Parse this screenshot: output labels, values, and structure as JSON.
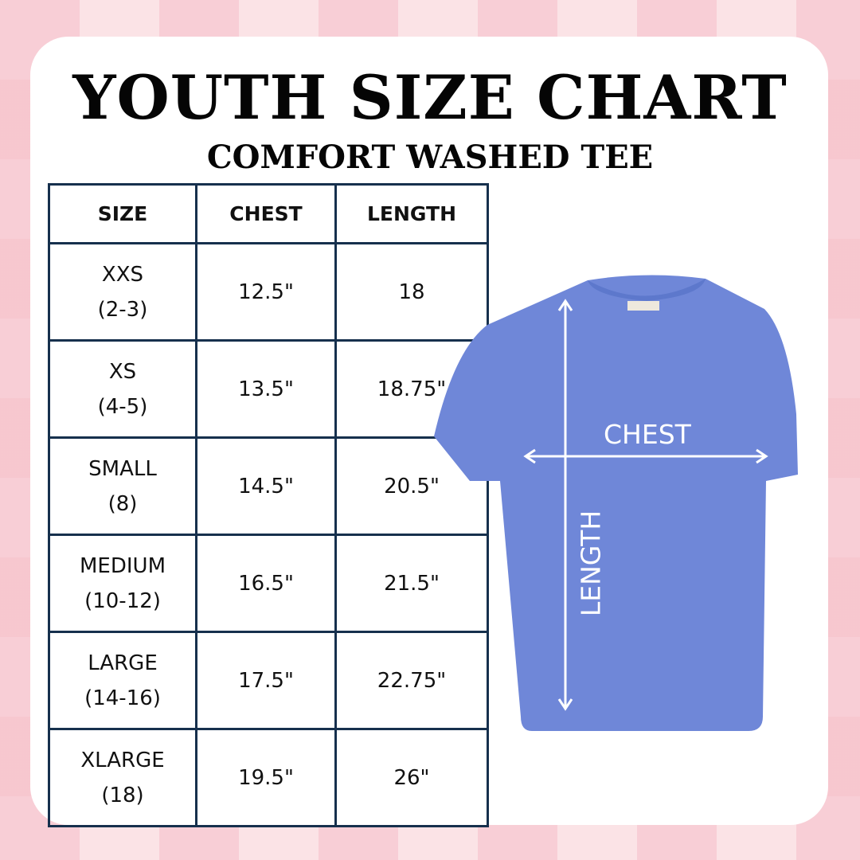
{
  "title": "YOUTH SIZE CHART",
  "subtitle": "COMFORT WASHED TEE",
  "table": {
    "headers": [
      "SIZE",
      "CHEST",
      "LENGTH"
    ],
    "rows": [
      {
        "size": "XXS",
        "range": "(2-3)",
        "chest": "12.5\"",
        "length": "18"
      },
      {
        "size": "XS",
        "range": "(4-5)",
        "chest": "13.5\"",
        "length": "18.75\""
      },
      {
        "size": "SMALL",
        "range": "(8)",
        "chest": "14.5\"",
        "length": "20.5\""
      },
      {
        "size": "MEDIUM",
        "range": "(10-12)",
        "chest": "16.5\"",
        "length": "21.5\""
      },
      {
        "size": "LARGE",
        "range": "(14-16)",
        "chest": "17.5\"",
        "length": "22.75\""
      },
      {
        "size": "XLARGE",
        "range": "(18)",
        "chest": "19.5\"",
        "length": "26\""
      }
    ]
  },
  "diagram": {
    "chest_label": "CHEST",
    "length_label": "LENGTH",
    "shirt_color": "#6f87d8"
  },
  "colors": {
    "border": "#16304d",
    "background": "#f8cfd6"
  }
}
